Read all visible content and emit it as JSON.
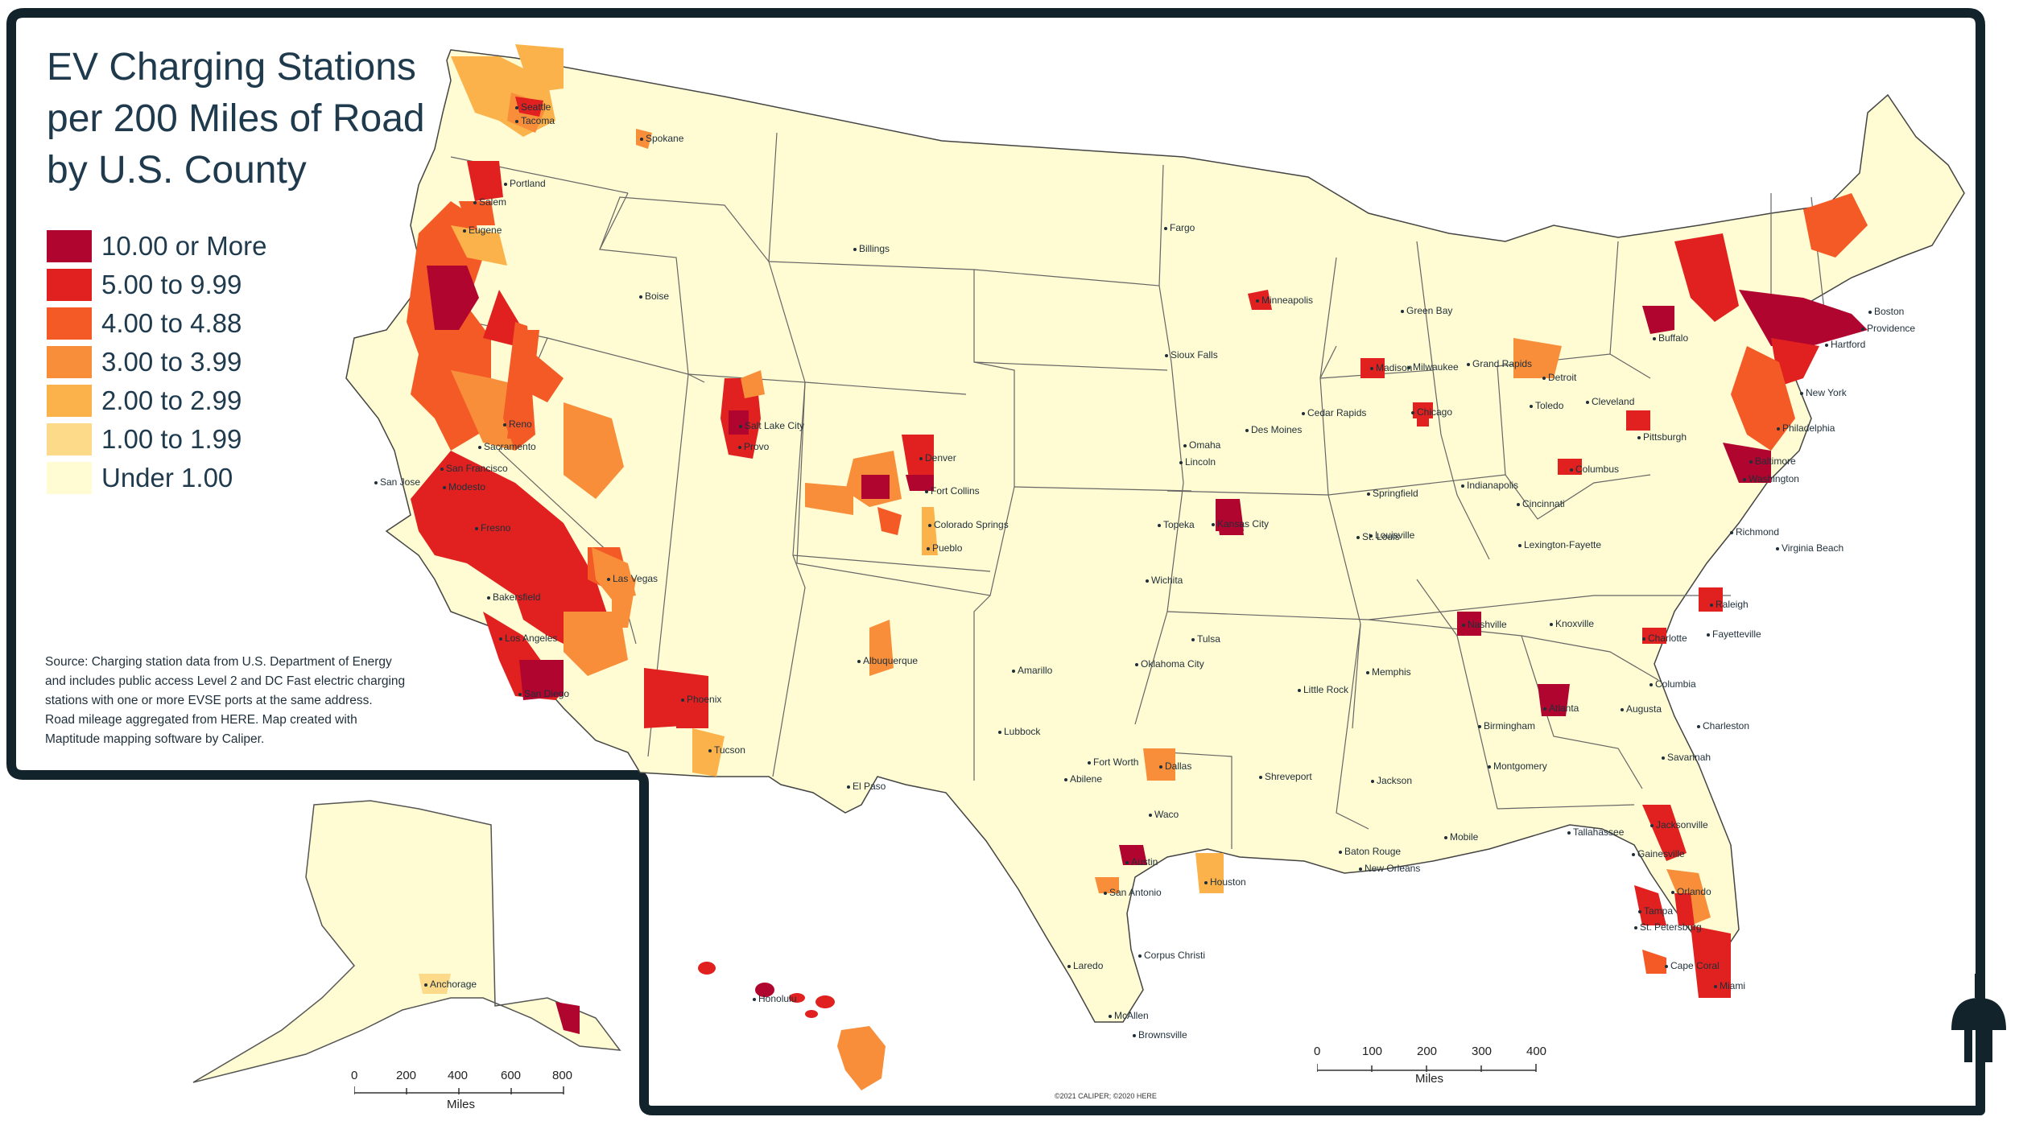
{
  "title": {
    "line1": "EV Charging Stations",
    "line2": "per 200 Miles of Road",
    "line3": "by U.S. County"
  },
  "legend": [
    {
      "label": "10.00 or More",
      "color": "#b0052e"
    },
    {
      "label": "5.00 to 9.99",
      "color": "#e0211f"
    },
    {
      "label": "4.00 to 4.88",
      "color": "#f45a26"
    },
    {
      "label": "3.00 to 3.99",
      "color": "#f88e3a"
    },
    {
      "label": "2.00 to 2.99",
      "color": "#fbb24a"
    },
    {
      "label": "1.00 to 1.99",
      "color": "#fdd98a"
    },
    {
      "label": "Under 1.00",
      "color": "#fffbd2"
    }
  ],
  "source": {
    "line1": "Source: Charging station data from U.S. Department of Energy",
    "line2": "and includes public access Level 2 and DC Fast electric charging",
    "line3": "stations with one or more EVSE ports at the same address.",
    "line4": "Road mileage aggregated from HERE.  Map created with",
    "line5": "Maptitude mapping software by Caliper."
  },
  "cities": [
    {
      "name": "Seattle",
      "color": "#e0211f"
    },
    {
      "name": "Tacoma",
      "color": "#e0211f"
    },
    {
      "name": "Spokane",
      "color": "#fbb24a"
    },
    {
      "name": "Portland",
      "color": "#b0052e"
    },
    {
      "name": "Salem",
      "color": "#f45a26"
    },
    {
      "name": "Eugene",
      "color": "#fbb24a"
    },
    {
      "name": "Boise",
      "color": "#fbb24a"
    },
    {
      "name": "Billings",
      "color": "#fffbd2"
    },
    {
      "name": "Fargo",
      "color": "#fffbd2"
    },
    {
      "name": "Minneapolis",
      "color": "#e0211f"
    },
    {
      "name": "Sioux Falls",
      "color": "#fffbd2"
    },
    {
      "name": "Green Bay",
      "color": "#fdd98a"
    },
    {
      "name": "Madison",
      "color": "#e0211f"
    },
    {
      "name": "Milwaukee",
      "color": "#fbb24a"
    },
    {
      "name": "Grand Rapids",
      "color": "#f88e3a"
    },
    {
      "name": "Detroit",
      "color": "#f88e3a"
    },
    {
      "name": "Toledo",
      "color": "#fbb24a"
    },
    {
      "name": "Cleveland",
      "color": "#fbb24a"
    },
    {
      "name": "Buffalo",
      "color": "#e0211f"
    },
    {
      "name": "Boston",
      "color": "#b0052e"
    },
    {
      "name": "Providence",
      "color": "#b0052e"
    },
    {
      "name": "Hartford",
      "color": "#b0052e"
    },
    {
      "name": "New York",
      "color": "#e0211f"
    },
    {
      "name": "Philadelphia",
      "color": "#f45a26"
    },
    {
      "name": "Pittsburgh",
      "color": "#e0211f"
    },
    {
      "name": "Baltimore",
      "color": "#b0052e"
    },
    {
      "name": "Washington",
      "color": "#b0052e"
    },
    {
      "name": "Richmond",
      "color": "#e0211f"
    },
    {
      "name": "Virginia Beach",
      "color": "#fbb24a"
    },
    {
      "name": "Columbus",
      "color": "#e0211f"
    },
    {
      "name": "Cincinnati",
      "color": "#fbb24a"
    },
    {
      "name": "Indianapolis",
      "color": "#fbb24a"
    },
    {
      "name": "Chicago",
      "color": "#e0211f"
    },
    {
      "name": "Des Moines",
      "color": "#f45a26"
    },
    {
      "name": "Cedar Rapids",
      "color": "#fbb24a"
    },
    {
      "name": "Omaha",
      "color": "#fbb24a"
    },
    {
      "name": "Lincoln",
      "color": "#fbb24a"
    },
    {
      "name": "Springfield",
      "color": "#fdd98a"
    },
    {
      "name": "Louisville",
      "color": "#fdd98a"
    },
    {
      "name": "Lexington-Fayette",
      "color": "#fbb24a"
    },
    {
      "name": "St. Louis",
      "color": "#fbb24a"
    },
    {
      "name": "Kansas City",
      "color": "#b0052e"
    },
    {
      "name": "Topeka",
      "color": "#fdd98a"
    },
    {
      "name": "Wichita",
      "color": "#fffbd2"
    },
    {
      "name": "Nashville",
      "color": "#b0052e"
    },
    {
      "name": "Knoxville",
      "color": "#fbb24a"
    },
    {
      "name": "Raleigh",
      "color": "#e0211f"
    },
    {
      "name": "Charlotte",
      "color": "#e0211f"
    },
    {
      "name": "Fayetteville",
      "color": "#fdd98a"
    },
    {
      "name": "Columbia",
      "color": "#fdd98a"
    },
    {
      "name": "Charleston",
      "color": "#fbb24a"
    },
    {
      "name": "Savannah",
      "color": "#f45a26"
    },
    {
      "name": "Augusta",
      "color": "#fdd98a"
    },
    {
      "name": "Atlanta",
      "color": "#b0052e"
    },
    {
      "name": "Birmingham",
      "color": "#fbb24a"
    },
    {
      "name": "Memphis",
      "color": "#fdd98a"
    },
    {
      "name": "Little Rock",
      "color": "#fbb24a"
    },
    {
      "name": "Tulsa",
      "color": "#fbb24a"
    },
    {
      "name": "Oklahoma City",
      "color": "#fbb24a"
    },
    {
      "name": "Jackson",
      "color": "#fffbd2"
    },
    {
      "name": "Montgomery",
      "color": "#fdd98a"
    },
    {
      "name": "Tallahassee",
      "color": "#fbb24a"
    },
    {
      "name": "Jacksonville",
      "color": "#f45a26"
    },
    {
      "name": "Gainesville",
      "color": "#fbb24a"
    },
    {
      "name": "Orlando",
      "color": "#e0211f"
    },
    {
      "name": "Tampa",
      "color": "#e0211f"
    },
    {
      "name": "St. Petersburg",
      "color": "#e0211f"
    },
    {
      "name": "Cape Coral",
      "color": "#f45a26"
    },
    {
      "name": "Miami",
      "color": "#e0211f"
    },
    {
      "name": "Mobile",
      "color": "#fbb24a"
    },
    {
      "name": "Baton Rouge",
      "color": "#fdd98a"
    },
    {
      "name": "New Orleans",
      "color": "#fbb24a"
    },
    {
      "name": "Shreveport",
      "color": "#fdd98a"
    },
    {
      "name": "Dallas",
      "color": "#f88e3a"
    },
    {
      "name": "Fort Worth",
      "color": "#f88e3a"
    },
    {
      "name": "Waco",
      "color": "#fdd98a"
    },
    {
      "name": "Austin",
      "color": "#b0052e"
    },
    {
      "name": "San Antonio",
      "color": "#f88e3a"
    },
    {
      "name": "Houston",
      "color": "#fbb24a"
    },
    {
      "name": "Corpus Christi",
      "color": "#fdd98a"
    },
    {
      "name": "Laredo",
      "color": "#fffbd2"
    },
    {
      "name": "McAllen",
      "color": "#fdd98a"
    },
    {
      "name": "Brownsville",
      "color": "#fdd98a"
    },
    {
      "name": "Abilene",
      "color": "#fffbd2"
    },
    {
      "name": "Lubbock",
      "color": "#fffbd2"
    },
    {
      "name": "Amarillo",
      "color": "#fffbd2"
    },
    {
      "name": "El Paso",
      "color": "#fdd98a"
    },
    {
      "name": "Albuquerque",
      "color": "#f88e3a"
    },
    {
      "name": "Denver",
      "color": "#b0052e"
    },
    {
      "name": "Fort Collins",
      "color": "#e0211f"
    },
    {
      "name": "Colorado Springs",
      "color": "#fbb24a"
    },
    {
      "name": "Pueblo",
      "color": "#fdd98a"
    },
    {
      "name": "Salt Lake City",
      "color": "#b0052e"
    },
    {
      "name": "Provo",
      "color": "#e0211f"
    },
    {
      "name": "Las Vegas",
      "color": "#f88e3a"
    },
    {
      "name": "Phoenix",
      "color": "#e0211f"
    },
    {
      "name": "Tucson",
      "color": "#fbb24a"
    },
    {
      "name": "Reno",
      "color": "#f45a26"
    },
    {
      "name": "Sacramento",
      "color": "#b0052e"
    },
    {
      "name": "San Francisco",
      "color": "#b0052e"
    },
    {
      "name": "San Jose",
      "color": "#b0052e"
    },
    {
      "name": "Modesto",
      "color": "#f45a26"
    },
    {
      "name": "Fresno",
      "color": "#e0211f"
    },
    {
      "name": "Bakersfield",
      "color": "#f88e3a"
    },
    {
      "name": "Los Angeles",
      "color": "#e0211f"
    },
    {
      "name": "San Diego",
      "color": "#b0052e"
    },
    {
      "name": "Anchorage",
      "color": "#fdd98a"
    },
    {
      "name": "Honolulu",
      "color": "#b0052e"
    }
  ],
  "alaska_scale": {
    "ticks": [
      "0",
      "200",
      "400",
      "600",
      "800"
    ],
    "unit": "Miles"
  },
  "conus_scale": {
    "ticks": [
      "0",
      "100",
      "200",
      "300",
      "400"
    ],
    "unit": "Miles"
  },
  "credit": "©2021 CALIPER; ©2020 HERE",
  "colors": {
    "frame": "#12232c",
    "land": "#fffbd2",
    "boundary": "#555555"
  }
}
